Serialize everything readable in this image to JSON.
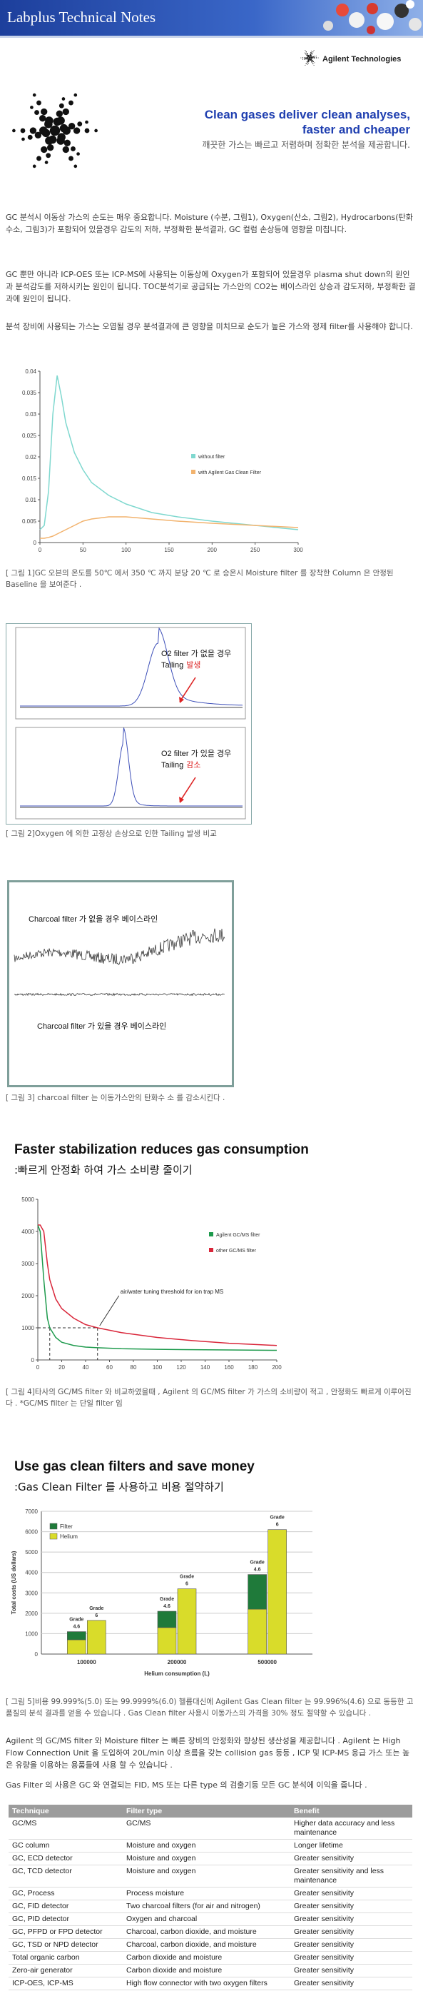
{
  "header": {
    "title": "Labplus Technical Notes",
    "brand": "Agilent Technologies"
  },
  "intro": {
    "title_lines": [
      "Clean gases deliver clean analyses,",
      "faster and cheaper"
    ],
    "subtitle": "깨끗한 가스는 빠르고 저렴하며 정확한 분석을 제공합니다."
  },
  "paragraphs": [
    "GC 분석시 이동상 가스의 순도는 매우 중요합니다. Moisture (수분, 그림1), Oxygen(산소, 그림2), Hydrocarbons(탄화수소, 그림3)가 포함되어 있을경우 감도의 저하, 부정확한 분석결과, GC 컬럼 손상등에 영향을 미칩니다.",
    "GC 뿐만 아니라 ICP-OES 또는 ICP-MS에 사용되는 이동상에 Oxygen가 포함되어 있을경우 plasma shut down의 원인과 분석감도를 저하시키는 원인이 됩니다. TOC분석기로 공급되는 가스안의 CO2는 베이스라인 상승과 감도저하, 부정확한 결과에 원인이 됩니다.",
    "분석 장비에 사용되는 가스는 오염될 경우 분석결과에 큰 영향을 미치므로 순도가 높은 가스와 정제 filter를 사용해야 합니다.",
    "Agilent 의 GC/MS filter 와 Moisture filter 는 빠른 장비의 안정화와 향상된 생산성을 제공합니다 . Agilent 는 High Flow Connection Unit 을 도입하여 20L/min 이상 흐름을 갖는 collision gas 등등 , ICP 및 ICP-MS 응급 가스 또는 높은 유량을 이용하는 용품들에 사용 할 수 있습니다 .",
    "Gas Filter 의 사용은 GC 와 연결되는 FID, MS 또는 다른 type 의 검출기등 모든 GC 분석에 이익을 줍니다 ."
  ],
  "captions": [
    "[ 그림 1]GC 오븐의 온도를 50℃ 에서 350 ℃ 까지 분당 20 ℃ 로 승온시 Moisture filter 를 장착한 Column 은 안정된 Baseline 을 보여준다 .",
    "[ 그림 2]Oxygen 에 의한 고정상 손상으로 인한 Tailing 발생 비교",
    "[ 그림 3] charcoal filter 는 이동가스안의 탄화수 소 를 감소시킨다 .",
    "[ 그림 4]타사의 GC/MS filter 와 비교하였을때 , Agilent 의 GC/MS filter 가 가스의 소비량이 적고 , 안정화도 빠르게 이루어진다 . *GC/MS filter 는 단일 filter 임",
    "[ 그림 5]비용 99.999%(5.0) 또는 99.9999%(6.0) 헬륨대신에 Agilent Gas Clean filter 는 99.996%(4.6) 으로 동등한 고품질의 분석 결과를 얻을 수 있습니다 . Gas Clean filter 사용시 이동가스의 가격을 30% 정도 절약할 수 있습니다 ."
  ],
  "sections": [
    {
      "heading": "Faster stabilization reduces gas consumption",
      "subheading": ":빠르게 안정화 하여 가스 소비량 줄이기"
    },
    {
      "heading": "Use gas clean filters and save money",
      "subheading": ":Gas Clean Filter 를 사용하고 비용 절약하기"
    }
  ],
  "figures": {
    "oxygen": [
      {
        "line1": "O2 filter 가 없을 경우",
        "line2": "Tailing",
        "emphasis": "발생"
      },
      {
        "line1": "O2 filter 가 있을 경우",
        "line2": "Tailing",
        "emphasis": "감소"
      }
    ],
    "charcoal": [
      "Charcoal filter 가 없을 경우 베이스라인",
      "Charcoal filter 가 있을 경우 베이스라인"
    ]
  },
  "chart_data": [
    {
      "type": "line",
      "x": [
        0,
        5,
        10,
        15,
        20,
        25,
        30,
        40,
        50,
        60,
        80,
        100,
        130,
        160,
        200,
        250,
        300
      ],
      "series": [
        {
          "name": "without filter",
          "color": "#7fd8cf",
          "values": [
            0.003,
            0.004,
            0.012,
            0.03,
            0.039,
            0.034,
            0.028,
            0.021,
            0.017,
            0.014,
            0.011,
            0.009,
            0.007,
            0.006,
            0.005,
            0.004,
            0.003
          ]
        },
        {
          "name": "with Agilent Gas Clean Filter",
          "color": "#f2b36e",
          "values": [
            0.001,
            0.001,
            0.0012,
            0.0015,
            0.002,
            0.0025,
            0.003,
            0.004,
            0.005,
            0.0055,
            0.006,
            0.006,
            0.0055,
            0.005,
            0.0045,
            0.004,
            0.0035
          ]
        }
      ],
      "xlim": [
        0,
        300
      ],
      "xticks": [
        0,
        50,
        100,
        150,
        200,
        250,
        300
      ],
      "ylim": [
        0,
        0.04
      ],
      "yticks": [
        0,
        0.005,
        0.01,
        0.015,
        0.02,
        0.025,
        0.03,
        0.035,
        0.04
      ],
      "legend": "right"
    },
    {
      "type": "line",
      "x": [
        0,
        2,
        5,
        8,
        10,
        15,
        20,
        30,
        40,
        50,
        70,
        100,
        130,
        160,
        200
      ],
      "series": [
        {
          "name": "Agilent GC/MS filter",
          "color": "#1d9a4c",
          "values": [
            4200,
            4000,
            2500,
            1300,
            1000,
            700,
            550,
            450,
            400,
            380,
            350,
            330,
            320,
            310,
            300
          ]
        },
        {
          "name": "other GC/MS filter",
          "color": "#d9263a",
          "values": [
            4200,
            4200,
            4000,
            3000,
            2500,
            1900,
            1600,
            1300,
            1100,
            1000,
            850,
            700,
            600,
            520,
            450
          ]
        }
      ],
      "xlim": [
        0,
        200
      ],
      "xticks": [
        0,
        20,
        40,
        60,
        80,
        100,
        120,
        140,
        160,
        180,
        200
      ],
      "ylim": [
        0,
        5000
      ],
      "yticks": [
        0,
        1000,
        2000,
        3000,
        4000,
        5000
      ],
      "threshold": 1000,
      "threshold_x": [
        10,
        50
      ],
      "annotation": "air/water tuning threshold for ion trap MS",
      "legend": "upper right"
    },
    {
      "type": "stacked-grouped-bar",
      "categories": [
        "100000",
        "200000",
        "500000"
      ],
      "groups": [
        "4.6",
        "6"
      ],
      "group_label": "Grade",
      "series": [
        {
          "name": "Filter",
          "color": "#1f7a3a",
          "values": [
            [
              400,
              null
            ],
            [
              800,
              null
            ],
            [
              1700,
              null
            ]
          ]
        },
        {
          "name": "Helium",
          "color": "#d9dc2a",
          "values": [
            [
              700,
              1650
            ],
            [
              1300,
              3200
            ],
            [
              2200,
              6100
            ]
          ]
        }
      ],
      "ylim": [
        0,
        7000
      ],
      "yticks": [
        0,
        1000,
        2000,
        3000,
        4000,
        5000,
        6000,
        7000
      ],
      "xlabel": "Helium consumption (L)",
      "ylabel": "Total costs (US dollars)",
      "grid": true,
      "legend": "upper left"
    }
  ],
  "table": {
    "header": [
      "Technique",
      "Filter type",
      "Benefit"
    ],
    "rows": [
      [
        "GC/MS",
        "GC/MS",
        "Higher data accuracy and less maintenance"
      ],
      [
        "GC column",
        "Moisture and oxygen",
        "Longer lifetime"
      ],
      [
        "GC, ECD detector",
        "Moisture and oxygen",
        "Greater sensitivity"
      ],
      [
        "GC, TCD detector",
        "Moisture and oxygen",
        "Greater sensitivity and less maintenance"
      ],
      [
        "GC, Process",
        "Process moisture",
        "Greater sensitivity"
      ],
      [
        "GC, FID detector",
        "Two charcoal filters (for air and nitrogen)",
        "Greater sensitivity"
      ],
      [
        "GC, PID detector",
        "Oxygen and charcoal",
        "Greater sensitivity"
      ],
      [
        "GC, PFPD or FPD detector",
        "Charcoal, carbon dioxide, and moisture",
        "Greater sensitivity"
      ],
      [
        "GC, TSD or NPD detector",
        "Charcoal, carbon dioxide, and moisture",
        "Greater sensitivity"
      ],
      [
        "Total organic carbon",
        "Carbon dioxide and moisture",
        "Greater sensitivity"
      ],
      [
        "Zero-air generator",
        "Carbon dioxide and moisture",
        "Greater sensitivity"
      ],
      [
        "ICP-OES, ICP-MS",
        "High flow connector with two oxygen filters",
        "Greater sensitivity"
      ]
    ]
  }
}
